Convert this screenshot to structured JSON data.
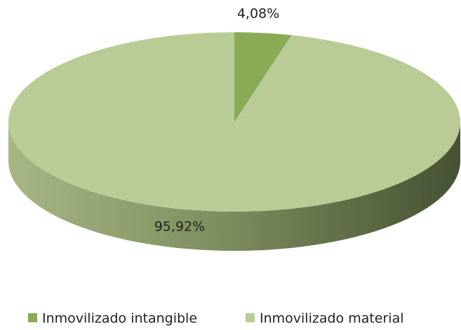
{
  "chart_data": {
    "type": "pie",
    "categories": [
      "Inmovilizado intangible",
      "Inmovilizado material"
    ],
    "values": [
      4.08,
      95.92
    ],
    "value_labels": [
      "4,08%",
      "95,92%"
    ],
    "colors": [
      "#8aab55",
      "#b9cc95"
    ],
    "legend": "bottom"
  }
}
